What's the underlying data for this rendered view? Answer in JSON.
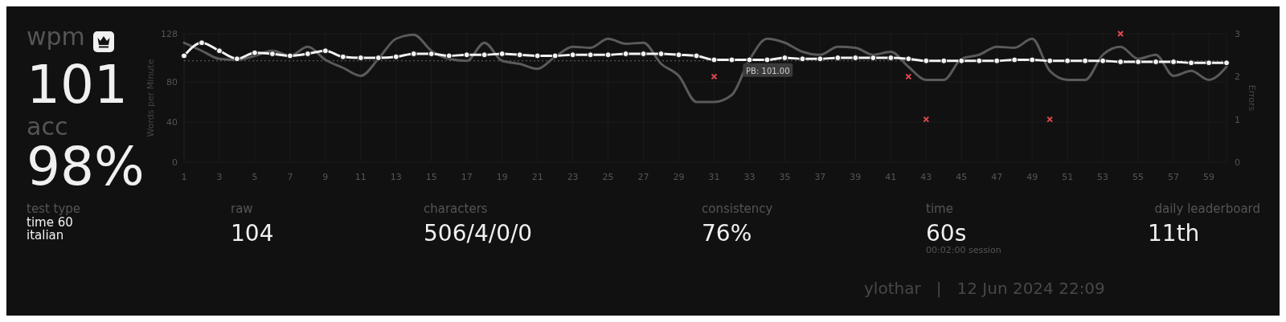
{
  "chart_data": {
    "type": "line",
    "xlabel": null,
    "ylabel": "Words per Minute",
    "y2label": "Errors",
    "x": [
      1,
      2,
      3,
      4,
      5,
      6,
      7,
      8,
      9,
      10,
      11,
      12,
      13,
      14,
      15,
      16,
      17,
      18,
      19,
      20,
      21,
      22,
      23,
      24,
      25,
      26,
      27,
      28,
      29,
      30,
      31,
      32,
      33,
      34,
      35,
      36,
      37,
      38,
      39,
      40,
      41,
      42,
      43,
      44,
      45,
      46,
      47,
      48,
      49,
      50,
      51,
      52,
      53,
      54,
      55,
      56,
      57,
      58,
      59,
      60
    ],
    "series": [
      {
        "color": "#5a5a5a",
        "marker": "none",
        "values": [
          119,
          111,
          103,
          102,
          106,
          111,
          106,
          115,
          102,
          94,
          86,
          103,
          123,
          127,
          111,
          103,
          101,
          119,
          101,
          98,
          93,
          105,
          115,
          114,
          123,
          118,
          119,
          98,
          86,
          60,
          60,
          67,
          102,
          123,
          119,
          110,
          107,
          115,
          114,
          107,
          110,
          95,
          82,
          82,
          103,
          107,
          115,
          114,
          123,
          91,
          82,
          82,
          107,
          115,
          103,
          107,
          86,
          91,
          82,
          95
        ]
      },
      {
        "color": "#f2f2f2",
        "marker": "circle",
        "values": [
          106,
          119,
          111,
          103,
          109,
          108,
          106,
          108,
          111,
          105,
          104,
          104,
          105,
          108,
          108,
          106,
          107,
          107,
          108,
          107,
          106,
          106,
          107,
          107,
          107,
          108,
          108,
          108,
          107,
          106,
          102,
          102,
          102,
          102,
          104,
          103,
          103,
          104,
          104,
          104,
          104,
          103,
          101,
          101,
          101,
          101,
          101,
          102,
          102,
          101,
          101,
          101,
          101,
          100,
          100,
          100,
          100,
          99,
          99,
          99
        ]
      },
      {
        "type": "scatter",
        "axis": "y2",
        "color": "#e0484d",
        "marker": "cross",
        "x": [
          31,
          42,
          43,
          50,
          54
        ],
        "values": [
          2,
          2,
          1,
          1,
          3
        ]
      }
    ],
    "xlim": [
      1,
      60
    ],
    "xticks": [
      1,
      3,
      5,
      7,
      9,
      11,
      13,
      15,
      17,
      19,
      21,
      23,
      25,
      27,
      29,
      31,
      33,
      35,
      37,
      39,
      41,
      43,
      45,
      47,
      49,
      51,
      53,
      55,
      57,
      59
    ],
    "ylim": [
      0,
      128
    ],
    "yticks": [
      0,
      40,
      80,
      128
    ],
    "y2lim": [
      0,
      3
    ],
    "y2ticks": [
      0,
      1,
      2,
      3
    ],
    "grid": true,
    "line_style": "solid",
    "ref_lines": [
      {
        "axis": "y",
        "value": 101,
        "label": "PB: 101.00",
        "line_style": "dotted",
        "color": "#666666"
      }
    ],
    "annotations": [
      "wpm",
      "101",
      "acc",
      "98%",
      "test type",
      "time 60",
      "italian",
      "raw",
      "104",
      "characters",
      "506/4/0/0",
      "consistency",
      "76%",
      "time",
      "60s",
      "00:02:00 session",
      "daily leaderboard",
      "11th",
      "ylothar   |   12 Jun 2024 22:09"
    ]
  }
}
